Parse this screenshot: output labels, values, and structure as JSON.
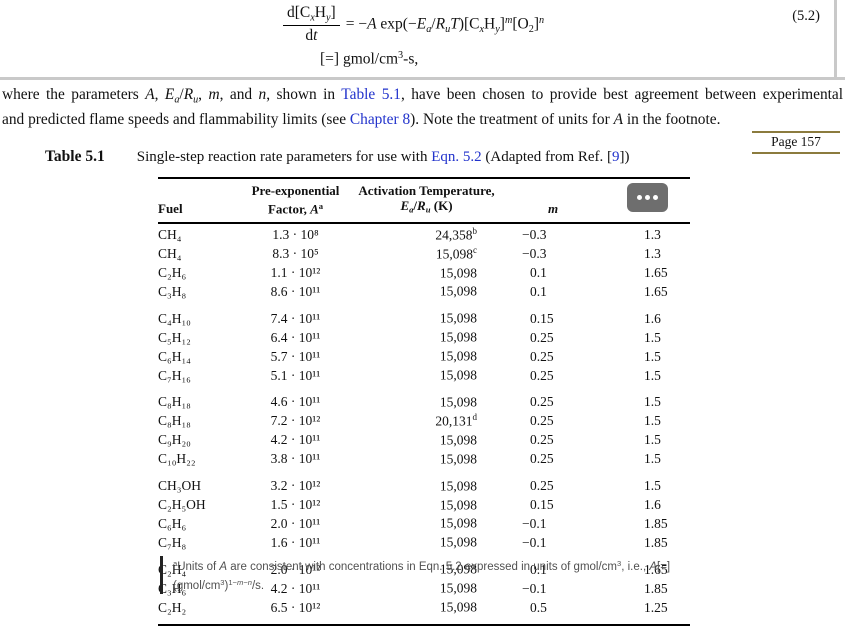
{
  "equation": {
    "number": "(5.2)",
    "numerator": [
      {
        "t": "d[C"
      },
      {
        "t": "x",
        "s": "sub i"
      },
      {
        "t": "H"
      },
      {
        "t": "y",
        "s": "sub i"
      },
      {
        "t": "]"
      }
    ],
    "denominator": [
      {
        "t": "d"
      },
      {
        "t": "t",
        "s": "i"
      }
    ],
    "rhs": [
      {
        "t": "= −"
      },
      {
        "t": "A",
        "s": "i"
      },
      {
        "t": " exp(−"
      },
      {
        "t": "E",
        "s": "i"
      },
      {
        "t": "a",
        "s": "sub i"
      },
      {
        "t": "/"
      },
      {
        "t": "R",
        "s": "i"
      },
      {
        "t": "u",
        "s": "sub i"
      },
      {
        "t": "T",
        "s": "i"
      },
      {
        "t": ")[C"
      },
      {
        "t": "x",
        "s": "sub i"
      },
      {
        "t": "H"
      },
      {
        "t": "y",
        "s": "sub i"
      },
      {
        "t": "]"
      },
      {
        "t": "m",
        "s": "sup i"
      },
      {
        "t": "[O"
      },
      {
        "t": "2",
        "s": "sub"
      },
      {
        "t": "]"
      },
      {
        "t": "n",
        "s": "sup i"
      }
    ],
    "units": [
      {
        "t": "[=] gmol/cm"
      },
      {
        "t": "3",
        "s": "sup"
      },
      {
        "t": "-s,"
      }
    ]
  },
  "paragraph": {
    "l1a": [
      {
        "t": "where the parameters "
      },
      {
        "t": "A",
        "s": "i"
      },
      {
        "t": ", "
      },
      {
        "t": "E",
        "s": "i"
      },
      {
        "t": "a",
        "s": "sub i"
      },
      {
        "t": "/"
      },
      {
        "t": "R",
        "s": "i"
      },
      {
        "t": "u",
        "s": "sub i"
      },
      {
        "t": ", "
      },
      {
        "t": "m",
        "s": "i"
      },
      {
        "t": ", and "
      },
      {
        "t": "n",
        "s": "i"
      },
      {
        "t": ", shown in "
      }
    ],
    "link_table": "Table 5.1",
    "l1b": [
      {
        "t": ", have been chosen to provide best agreement between experimental"
      }
    ],
    "l2a": [
      {
        "t": "and predicted flame speeds and flammability limits (see "
      }
    ],
    "link_chapter": "Chapter 8",
    "l2b": [
      {
        "t": "). Note the treatment of units for "
      },
      {
        "t": "A",
        "s": "i"
      },
      {
        "t": " in the footnote."
      }
    ]
  },
  "page_marker": "Page 157",
  "caption": {
    "label": "Table 5.1",
    "a": [
      {
        "t": "Single-step reaction rate parameters for use with "
      }
    ],
    "link_eqn": "Eqn. 5.2",
    "b": [
      {
        "t": " (Adapted from Ref. ["
      }
    ],
    "link_ref": "9",
    "c": [
      {
        "t": "])"
      }
    ]
  },
  "table": {
    "header": {
      "fuel": "Fuel",
      "a1": "Pre-exponential",
      "a2": [
        {
          "t": "Factor, "
        },
        {
          "t": "A",
          "s": "i"
        },
        {
          "t": "a",
          "s": "sup"
        }
      ],
      "t1": "Activation Temperature,",
      "t2": [
        {
          "t": "E",
          "s": "i"
        },
        {
          "t": "a",
          "s": "sub i"
        },
        {
          "t": "/"
        },
        {
          "t": "R",
          "s": "i"
        },
        {
          "t": "u",
          "s": "sub i"
        },
        {
          "t": " (K)"
        }
      ],
      "m": "m"
    },
    "rows": [
      {
        "fuel": "CH₄",
        "a": "1.3 · 10⁸",
        "temp": "24,358",
        "note": "b",
        "m": "−0.3",
        "mcls": "neg",
        "n": "1.3"
      },
      {
        "fuel": "CH₄",
        "a": "8.3 · 10⁵",
        "temp": "15,098",
        "note": "c",
        "m": "−0.3",
        "mcls": "neg",
        "n": "1.3"
      },
      {
        "fuel": "C₂H₆",
        "a": "1.1 · 10¹²",
        "temp": "15,098",
        "m": "0.1",
        "n": "1.65"
      },
      {
        "fuel": "C₃H₈",
        "a": "8.6 · 10¹¹",
        "temp": "15,098",
        "m": "0.1",
        "n": "1.65"
      },
      {
        "fuel": "C₄H₁₀",
        "a": "7.4 · 10¹¹",
        "temp": "15,098",
        "m": "0.15",
        "n": "1.6",
        "cls": "gap"
      },
      {
        "fuel": "C₅H₁₂",
        "a": "6.4 · 10¹¹",
        "temp": "15,098",
        "m": "0.25",
        "n": "1.5"
      },
      {
        "fuel": "C₆H₁₄",
        "a": "5.7 · 10¹¹",
        "temp": "15,098",
        "m": "0.25",
        "n": "1.5"
      },
      {
        "fuel": "C₇H₁₆",
        "a": "5.1 · 10¹¹",
        "temp": "15,098",
        "m": "0.25",
        "n": "1.5"
      },
      {
        "fuel": "C₈H₁₈",
        "a": "4.6 · 10¹¹",
        "temp": "15,098",
        "m": "0.25",
        "n": "1.5",
        "cls": "gap"
      },
      {
        "fuel": "C₈H₁₈",
        "a": "7.2 · 10¹²",
        "temp": "20,131",
        "note": "d",
        "m": "0.25",
        "n": "1.5"
      },
      {
        "fuel": "C₉H₂₀",
        "a": "4.2 · 10¹¹",
        "temp": "15,098",
        "m": "0.25",
        "n": "1.5"
      },
      {
        "fuel": "C₁₀H₂₂",
        "a": "3.8 · 10¹¹",
        "temp": "15,098",
        "m": "0.25",
        "n": "1.5"
      },
      {
        "fuel": "CH₃OH",
        "a": "3.2 · 10¹²",
        "temp": "15,098",
        "m": "0.25",
        "n": "1.5",
        "cls": "gap"
      },
      {
        "fuel": "C₂H₅OH",
        "a": "1.5 · 10¹²",
        "temp": "15,098",
        "m": "0.15",
        "n": "1.6"
      },
      {
        "fuel": "C₆H₆",
        "a": "2.0 · 10¹¹",
        "temp": "15,098",
        "m": "−0.1",
        "mcls": "neg",
        "n": "1.85"
      },
      {
        "fuel": "C₇H₈",
        "a": "1.6 · 10¹¹",
        "temp": "15,098",
        "m": "−0.1",
        "mcls": "neg",
        "n": "1.85"
      },
      {
        "fuel": "C₂H₄",
        "a": "2.0 · 10¹²",
        "temp": "15,098",
        "m": "0.1",
        "n": "1.65",
        "cls": "gap"
      },
      {
        "fuel": "C₃H₆",
        "a": "4.2 · 10¹¹",
        "temp": "15,098",
        "m": "−0.1",
        "mcls": "neg",
        "n": "1.85"
      },
      {
        "fuel": "C₂H₂",
        "a": "6.5 · 10¹²",
        "temp": "15,098",
        "m": "0.5",
        "n": "1.25"
      }
    ]
  },
  "more_button_icon": "ellipsis-icon",
  "footnote": {
    "l1": [
      {
        "t": "a",
        "s": "sup"
      },
      {
        "t": "Units of "
      },
      {
        "t": "A",
        "s": "i"
      },
      {
        "t": " are consistent with concentrations in Eqn. 5.2 expressed in units of gmol/cm"
      },
      {
        "t": "3",
        "s": "sup"
      },
      {
        "t": ", i.e., "
      },
      {
        "t": "A",
        "s": "i"
      },
      {
        "t": "[=]"
      }
    ],
    "l2": [
      {
        "t": "(gmol/cm"
      },
      {
        "t": "3",
        "s": "sup"
      },
      {
        "t": ")"
      },
      {
        "t": "1−",
        "s": "sup"
      },
      {
        "t": "m",
        "s": "sup i"
      },
      {
        "t": "−",
        "s": "sup"
      },
      {
        "t": "n",
        "s": "sup i"
      },
      {
        "t": "/s."
      }
    ]
  },
  "colors": {
    "link": "#2233cc",
    "page_marker_rule": "#8b7b3e",
    "more_button": "#6e6e6e",
    "divider": "#c9c9c9"
  }
}
